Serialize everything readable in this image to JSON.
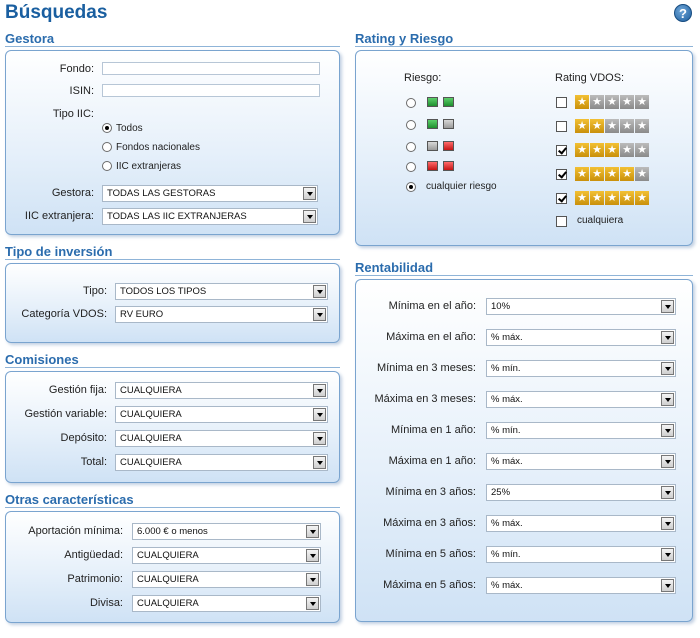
{
  "page": {
    "title": "Búsquedas",
    "help_icon": "question-mark-icon"
  },
  "gestora": {
    "title": "Gestora",
    "fondo_label": "Fondo:",
    "fondo_value": "",
    "isin_label": "ISIN:",
    "isin_value": "",
    "tipo_iic_label": "Tipo IIC:",
    "tipo_iic_options": [
      {
        "label": "Todos",
        "selected": true
      },
      {
        "label": "Fondos nacionales",
        "selected": false
      },
      {
        "label": "IIC extranjeras",
        "selected": false
      }
    ],
    "gestora_label": "Gestora:",
    "gestora_value": "TODAS LAS GESTORAS",
    "iic_ext_label": "IIC extranjera:",
    "iic_ext_value": "TODAS LAS IIC EXTRANJERAS"
  },
  "tipo_inversion": {
    "title": "Tipo de inversión",
    "tipo_label": "Tipo:",
    "tipo_value": "TODOS LOS TIPOS",
    "categoria_label": "Categoría VDOS:",
    "categoria_value": "RV EURO"
  },
  "comisiones": {
    "title": "Comisiones",
    "rows": [
      {
        "label": "Gestión fija:",
        "value": "CUALQUIERA"
      },
      {
        "label": "Gestión variable:",
        "value": "CUALQUIERA"
      },
      {
        "label": "Depósito:",
        "value": "CUALQUIERA"
      },
      {
        "label": "Total:",
        "value": "CUALQUIERA"
      }
    ]
  },
  "otras": {
    "title": "Otras características",
    "rows": [
      {
        "label": "Aportación mínima:",
        "value": "6.000 € o menos"
      },
      {
        "label": "Antigüedad:",
        "value": "CUALQUIERA"
      },
      {
        "label": "Patrimonio:",
        "value": "CUALQUIERA"
      },
      {
        "label": "Divisa:",
        "value": "CUALQUIERA"
      }
    ]
  },
  "rating": {
    "title": "Rating y Riesgo",
    "riesgo_header": "Riesgo:",
    "rating_header": "Rating VDOS:",
    "riesgo_options": [
      {
        "colors": [
          "green",
          "green"
        ],
        "selected": false
      },
      {
        "colors": [
          "green",
          "gray"
        ],
        "selected": false
      },
      {
        "colors": [
          "gray",
          "red"
        ],
        "selected": false
      },
      {
        "colors": [
          "red",
          "red"
        ],
        "selected": false
      },
      {
        "label": "cualquier riesgo",
        "selected": true
      }
    ],
    "rating_options": [
      {
        "stars": 1,
        "checked": false
      },
      {
        "stars": 2,
        "checked": false
      },
      {
        "stars": 3,
        "checked": true
      },
      {
        "stars": 4,
        "checked": true
      },
      {
        "stars": 5,
        "checked": true
      }
    ],
    "cualquiera_label": "cualquiera",
    "cualquiera_checked": false
  },
  "rentabilidad": {
    "title": "Rentabilidad",
    "rows": [
      {
        "label": "Mínima en el año:",
        "value": "10%"
      },
      {
        "label": "Máxima en el año:",
        "value": "% máx."
      },
      {
        "label": "Mínima en 3 meses:",
        "value": "% mín."
      },
      {
        "label": "Máxima en 3 meses:",
        "value": "% máx."
      },
      {
        "label": "Mínima en 1 año:",
        "value": "% mín."
      },
      {
        "label": "Máxima en 1 año:",
        "value": "% máx."
      },
      {
        "label": "Mínima en 3 años:",
        "value": "25%"
      },
      {
        "label": "Máxima en 3 años:",
        "value": "% máx."
      },
      {
        "label": "Mínima en 5 años:",
        "value": "% mín."
      },
      {
        "label": "Máxima en 5 años:",
        "value": "% máx."
      }
    ]
  }
}
